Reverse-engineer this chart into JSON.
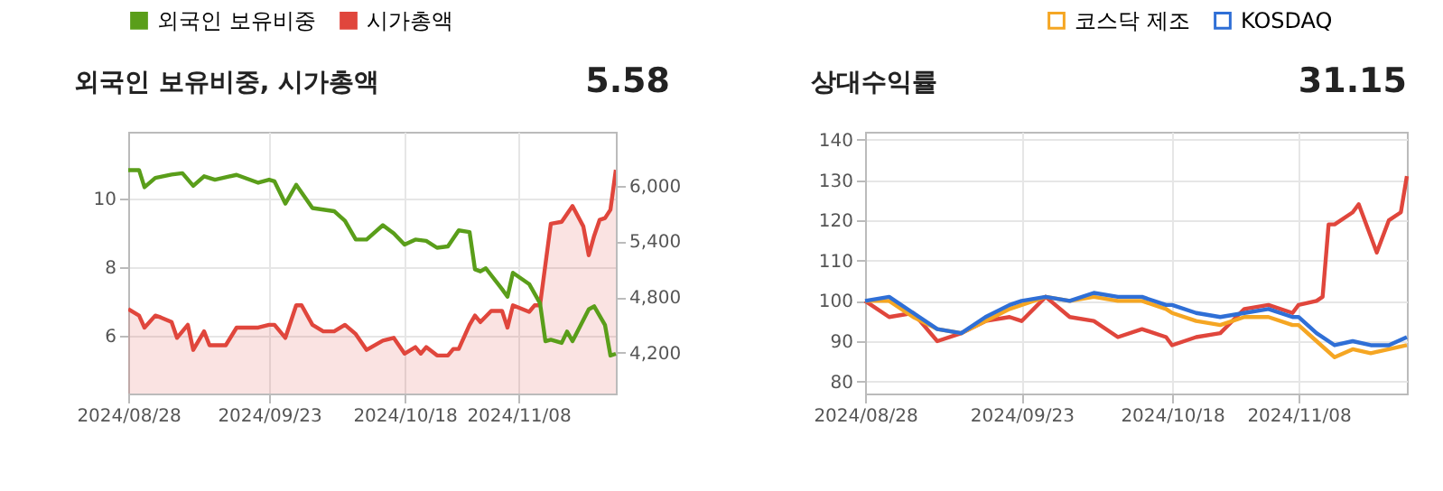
{
  "chart_data": [
    {
      "type": "line",
      "title": "외국인 보유비중, 시가총액",
      "annotations": [
        "5.58"
      ],
      "legend": "top left",
      "grid": true,
      "xlim": [
        "2024-08-28",
        "2024-11-26"
      ],
      "xticks": [
        {
          "value": "2024-08-28",
          "label": "2024/08/28"
        },
        {
          "value": "2024-09-23",
          "label": "2024/09/23"
        },
        {
          "value": "2024-10-18",
          "label": "2024/10/18"
        },
        {
          "value": "2024-11-08",
          "label": "2024/11/08"
        }
      ],
      "ylim": [
        4.3,
        11.95
      ],
      "yticks": [
        6,
        8,
        10
      ],
      "y2lim": [
        3760,
        6580
      ],
      "y2ticks": [
        {
          "value": 4200,
          "label": "4,200"
        },
        {
          "value": 4800,
          "label": "4,800"
        },
        {
          "value": 5400,
          "label": "5,400"
        },
        {
          "value": 6000,
          "label": "6,000"
        }
      ],
      "series": [
        {
          "name": "외국인 보유비중",
          "color": "#5a9e1a",
          "x": [
            "2024-08-28",
            "2024-08-30",
            "2024-08-31",
            "2024-09-02",
            "2024-09-05",
            "2024-09-07",
            "2024-09-09",
            "2024-09-11",
            "2024-09-13",
            "2024-09-17",
            "2024-09-21",
            "2024-09-23",
            "2024-09-24",
            "2024-09-26",
            "2024-09-28",
            "2024-10-01",
            "2024-10-05",
            "2024-10-07",
            "2024-10-09",
            "2024-10-11",
            "2024-10-14",
            "2024-10-16",
            "2024-10-18",
            "2024-10-20",
            "2024-10-22",
            "2024-10-24",
            "2024-10-26",
            "2024-10-28",
            "2024-10-30",
            "2024-10-31",
            "2024-11-01",
            "2024-11-02",
            "2024-11-05",
            "2024-11-06",
            "2024-11-07",
            "2024-11-10",
            "2024-11-12",
            "2024-11-13",
            "2024-11-14",
            "2024-11-16",
            "2024-11-17",
            "2024-11-18",
            "2024-11-21",
            "2024-11-22",
            "2024-11-24",
            "2024-11-25",
            "2024-11-26"
          ],
          "values": [
            10.83,
            10.83,
            10.33,
            10.6,
            10.7,
            10.74,
            10.37,
            10.65,
            10.55,
            10.69,
            10.46,
            10.55,
            10.5,
            9.85,
            10.4,
            9.72,
            9.63,
            9.35,
            8.8,
            8.8,
            9.22,
            8.98,
            8.65,
            8.8,
            8.76,
            8.56,
            8.6,
            9.07,
            9.02,
            7.93,
            7.87,
            7.96,
            7.35,
            7.13,
            7.83,
            7.5,
            6.94,
            5.83,
            5.87,
            5.78,
            6.11,
            5.83,
            6.76,
            6.85,
            6.3,
            5.41,
            5.46
          ]
        },
        {
          "name": "시가총액",
          "color": "#e0463c",
          "type": "area",
          "axis": "y2",
          "x": [
            "2024-08-28",
            "2024-08-30",
            "2024-08-31",
            "2024-09-02",
            "2024-09-03",
            "2024-09-05",
            "2024-09-06",
            "2024-09-08",
            "2024-09-09",
            "2024-09-11",
            "2024-09-12",
            "2024-09-15",
            "2024-09-17",
            "2024-09-21",
            "2024-09-23",
            "2024-09-24",
            "2024-09-26",
            "2024-09-28",
            "2024-09-29",
            "2024-10-01",
            "2024-10-03",
            "2024-10-05",
            "2024-10-07",
            "2024-10-09",
            "2024-10-11",
            "2024-10-14",
            "2024-10-16",
            "2024-10-18",
            "2024-10-20",
            "2024-10-21",
            "2024-10-22",
            "2024-10-24",
            "2024-10-26",
            "2024-10-27",
            "2024-10-28",
            "2024-10-30",
            "2024-10-31",
            "2024-11-01",
            "2024-11-03",
            "2024-11-05",
            "2024-11-06",
            "2024-11-07",
            "2024-11-10",
            "2024-11-11",
            "2024-11-12",
            "2024-11-14",
            "2024-11-16",
            "2024-11-18",
            "2024-11-20",
            "2024-11-21",
            "2024-11-22",
            "2024-11-23",
            "2024-11-24",
            "2024-11-25",
            "2024-11-26"
          ],
          "values": [
            4670,
            4600,
            4470,
            4600,
            4580,
            4530,
            4360,
            4500,
            4230,
            4430,
            4280,
            4280,
            4470,
            4470,
            4500,
            4500,
            4360,
            4710,
            4710,
            4500,
            4430,
            4430,
            4500,
            4400,
            4230,
            4330,
            4360,
            4190,
            4260,
            4190,
            4260,
            4170,
            4170,
            4240,
            4240,
            4500,
            4600,
            4530,
            4650,
            4650,
            4470,
            4710,
            4640,
            4710,
            4710,
            5590,
            5610,
            5780,
            5560,
            5250,
            5460,
            5630,
            5650,
            5740,
            6170
          ]
        }
      ]
    },
    {
      "type": "line",
      "title": "상대수익률",
      "annotations": [
        "31.15"
      ],
      "legend": "top right",
      "grid": true,
      "xlim": [
        "2024-08-28",
        "2024-11-26"
      ],
      "xticks": [
        {
          "value": "2024-08-28",
          "label": "2024/08/28"
        },
        {
          "value": "2024-09-23",
          "label": "2024/09/23"
        },
        {
          "value": "2024-10-18",
          "label": "2024/10/18"
        },
        {
          "value": "2024-11-08",
          "label": "2024/11/08"
        }
      ],
      "ylim": [
        77,
        142
      ],
      "yticks": [
        80,
        90,
        100,
        110,
        120,
        130,
        140
      ],
      "series": [
        {
          "color": "#e0463c",
          "x": [
            "2024-08-28",
            "2024-09-01",
            "2024-09-05",
            "2024-09-09",
            "2024-09-13",
            "2024-09-17",
            "2024-09-21",
            "2024-09-23",
            "2024-09-27",
            "2024-10-01",
            "2024-10-05",
            "2024-10-09",
            "2024-10-13",
            "2024-10-17",
            "2024-10-18",
            "2024-10-22",
            "2024-10-26",
            "2024-10-30",
            "2024-11-03",
            "2024-11-07",
            "2024-11-08",
            "2024-11-11",
            "2024-11-12",
            "2024-11-13",
            "2024-11-14",
            "2024-11-17",
            "2024-11-18",
            "2024-11-21",
            "2024-11-23",
            "2024-11-25",
            "2024-11-26"
          ],
          "values": [
            100,
            96,
            97,
            90,
            92,
            95,
            96,
            95,
            101,
            96,
            95,
            91,
            93,
            91,
            89,
            91,
            92,
            98,
            99,
            97,
            99,
            100,
            101,
            119,
            119,
            122,
            124,
            112,
            120,
            122,
            131
          ]
        },
        {
          "name": "코스닥 제조",
          "color": "#f5a623",
          "x": [
            "2024-08-28",
            "2024-09-01",
            "2024-09-05",
            "2024-09-09",
            "2024-09-13",
            "2024-09-17",
            "2024-09-21",
            "2024-09-23",
            "2024-09-27",
            "2024-10-01",
            "2024-10-05",
            "2024-10-09",
            "2024-10-13",
            "2024-10-17",
            "2024-10-18",
            "2024-10-22",
            "2024-10-26",
            "2024-10-30",
            "2024-11-03",
            "2024-11-07",
            "2024-11-08",
            "2024-11-11",
            "2024-11-14",
            "2024-11-17",
            "2024-11-20",
            "2024-11-23",
            "2024-11-26"
          ],
          "values": [
            100,
            100,
            96,
            93,
            92,
            95,
            98,
            99,
            101,
            100,
            101,
            100,
            100,
            98,
            97,
            95,
            94,
            96,
            96,
            94,
            94,
            90,
            86,
            88,
            87,
            88,
            89
          ]
        },
        {
          "name": "KOSDAQ",
          "color": "#2f6fd6",
          "x": [
            "2024-08-28",
            "2024-09-01",
            "2024-09-05",
            "2024-09-09",
            "2024-09-13",
            "2024-09-17",
            "2024-09-21",
            "2024-09-23",
            "2024-09-27",
            "2024-10-01",
            "2024-10-05",
            "2024-10-09",
            "2024-10-13",
            "2024-10-17",
            "2024-10-18",
            "2024-10-22",
            "2024-10-26",
            "2024-10-30",
            "2024-11-03",
            "2024-11-07",
            "2024-11-08",
            "2024-11-11",
            "2024-11-14",
            "2024-11-17",
            "2024-11-20",
            "2024-11-23",
            "2024-11-26"
          ],
          "values": [
            100,
            101,
            97,
            93,
            92,
            96,
            99,
            100,
            101,
            100,
            102,
            101,
            101,
            99,
            99,
            97,
            96,
            97,
            98,
            96,
            96,
            92,
            89,
            90,
            89,
            89,
            91
          ]
        }
      ]
    }
  ]
}
